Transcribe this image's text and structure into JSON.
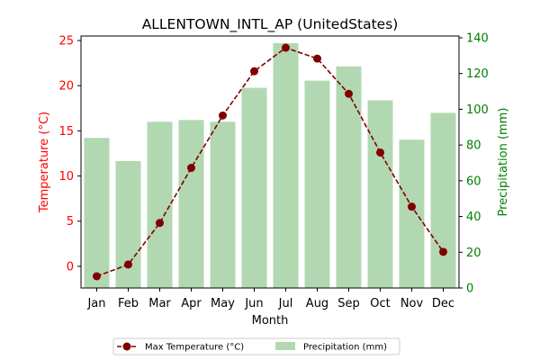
{
  "chart_data": {
    "type": "bar+line",
    "title": "ALLENTOWN_INTL_AP (UnitedStates)",
    "xlabel": "Month",
    "ylabel_left": "Temperature (°C)",
    "ylabel_right": "Precipitation (mm)",
    "categories": [
      "Jan",
      "Feb",
      "Mar",
      "Apr",
      "May",
      "Jun",
      "Jul",
      "Aug",
      "Sep",
      "Oct",
      "Nov",
      "Dec"
    ],
    "series": [
      {
        "name": "Max Temperature (°C)",
        "kind": "line",
        "axis": "left",
        "color": "#800000",
        "values": [
          -1.1,
          0.2,
          4.8,
          10.9,
          16.7,
          21.6,
          24.2,
          23.0,
          19.1,
          12.6,
          6.6,
          1.6
        ]
      },
      {
        "name": "Precipitation (mm)",
        "kind": "bar",
        "axis": "right",
        "color": "#b2d8b2",
        "values": [
          84,
          71,
          93,
          94,
          93,
          112,
          137,
          116,
          124,
          105,
          83,
          98
        ]
      }
    ],
    "ylim_left": [
      -2.4,
      25.5
    ],
    "ylim_right": [
      0,
      141
    ],
    "yticks_left": [
      0,
      5,
      10,
      15,
      20,
      25
    ],
    "yticks_right": [
      0,
      20,
      40,
      60,
      80,
      100,
      120,
      140
    ],
    "left_axis_color": "#ff0000",
    "right_axis_color": "#008000",
    "grid": false,
    "legend_placement": "bottom-center"
  }
}
